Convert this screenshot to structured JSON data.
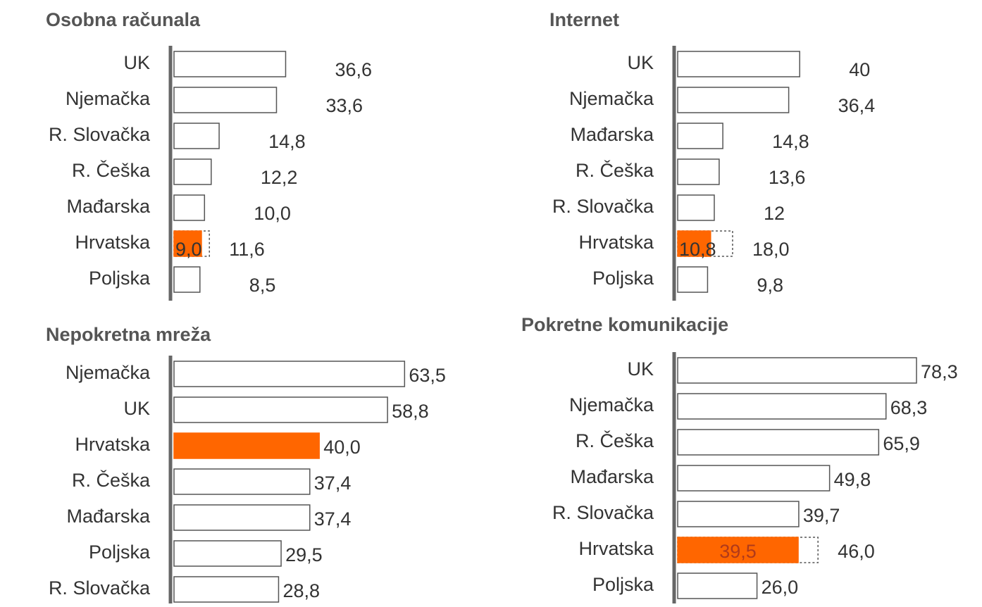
{
  "chart_data": [
    {
      "type": "bar",
      "title": "Osobna računala",
      "categories": [
        "UK",
        "Njemačka",
        "R. Slovačka",
        "R. Češka",
        "Mađarska",
        "Hrvatska",
        "Poljska"
      ],
      "values": [
        36.6,
        33.6,
        14.8,
        12.2,
        10.0,
        9.0,
        8.5
      ],
      "value_labels": [
        "36,6",
        "33,6",
        "14,8",
        "12,2",
        "10,0",
        "9,0",
        "8,5"
      ],
      "targets": [
        null,
        null,
        null,
        null,
        null,
        11.6,
        null
      ],
      "target_labels": [
        null,
        null,
        null,
        null,
        null,
        "11,6",
        null
      ],
      "colors": [
        "#ffffff",
        "#ffffff",
        "#ffffff",
        "#ffffff",
        "#ffffff",
        "#ff6600",
        "#ffffff"
      ],
      "xlim": [
        0,
        100
      ]
    },
    {
      "type": "bar",
      "title": "Internet",
      "categories": [
        "UK",
        "Njemačka",
        "Mađarska",
        "R. Češka",
        "R. Slovačka",
        "Hrvatska",
        "Poljska"
      ],
      "values": [
        40,
        36.4,
        14.8,
        13.6,
        12,
        10.8,
        9.8
      ],
      "value_labels": [
        "40",
        "36,4",
        "14,8",
        "13,6",
        "12",
        "10,8",
        "9,8"
      ],
      "targets": [
        null,
        null,
        null,
        null,
        null,
        18.0,
        null
      ],
      "target_labels": [
        null,
        null,
        null,
        null,
        null,
        "18,0",
        null
      ],
      "colors": [
        "#ffffff",
        "#ffffff",
        "#ffffff",
        "#ffffff",
        "#ffffff",
        "#ff6600",
        "#ffffff"
      ],
      "xlim": [
        0,
        100
      ]
    },
    {
      "type": "bar",
      "title": "Nepokretna mreža",
      "categories": [
        "Njemačka",
        "UK",
        "Hrvatska",
        "R. Češka",
        "Mađarska",
        "Poljska",
        "R. Slovačka"
      ],
      "values": [
        63.5,
        58.8,
        40.0,
        37.4,
        37.4,
        29.5,
        28.8
      ],
      "value_labels": [
        "63,5",
        "58,8",
        "40,0",
        "37,4",
        "37,4",
        "29,5",
        "28,8"
      ],
      "colors": [
        "#ffffff",
        "#ffffff",
        "#ff6600",
        "#ffffff",
        "#ffffff",
        "#ffffff",
        "#ffffff"
      ],
      "xlim": [
        0,
        84
      ]
    },
    {
      "type": "bar",
      "title": "Pokretne komunikacije",
      "categories": [
        "UK",
        "Njemačka",
        "R. Češka",
        "Mađarska",
        "R. Slovačka",
        "Hrvatska",
        "Poljska"
      ],
      "values": [
        78.3,
        68.3,
        65.9,
        49.8,
        39.7,
        39.5,
        26.0
      ],
      "value_labels": [
        "78,3",
        "68,3",
        "65,9",
        "49,8",
        "39,7",
        "39,5",
        "26,0"
      ],
      "targets": [
        null,
        null,
        null,
        null,
        null,
        46.0,
        null
      ],
      "target_labels": [
        null,
        null,
        null,
        null,
        null,
        "46,0",
        null
      ],
      "colors": [
        "#ffffff",
        "#ffffff",
        "#ffffff",
        "#ffffff",
        "#ffffff",
        "#ff6600",
        "#ffffff"
      ],
      "xlim": [
        0,
        100
      ]
    }
  ]
}
